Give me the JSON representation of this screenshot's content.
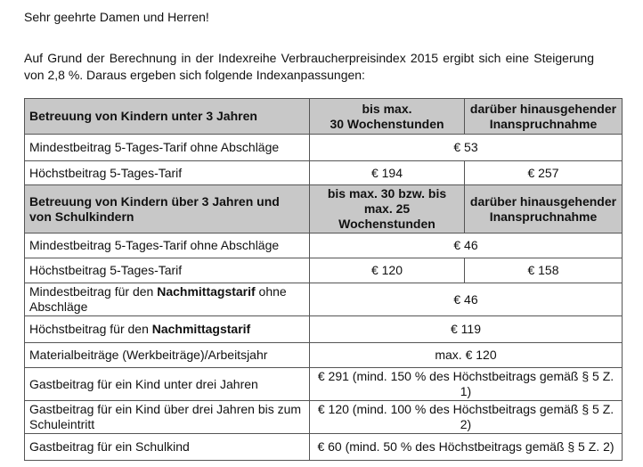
{
  "greeting": "Sehr geehrte Damen und Herren!",
  "intro": "Auf Grund der Berechnung in der Indexreihe Verbraucherpreisindex 2015 ergibt sich eine Steigerung von 2,8 %. Daraus ergeben sich folgende Indexanpassungen:",
  "table": {
    "header1": {
      "label": "Betreuung von Kindern unter 3 Jahren",
      "col1": "bis max. 30 Wochenstunden",
      "col1_l1": "bis max.",
      "col1_l2": "30 Wochenstunden",
      "col2_l1": "darüber hinausgehender",
      "col2_l2": "Inanspruchnahme"
    },
    "r1": {
      "label": "Mindestbeitrag 5-Tages-Tarif ohne Abschläge",
      "value": "€ 53"
    },
    "r2": {
      "label": "Höchstbeitrag 5-Tages-Tarif",
      "v1": "€ 194",
      "v2": "€ 257"
    },
    "header2": {
      "label": "Betreuung von Kindern über 3 Jahren und von Schulkindern",
      "col1": "bis max. 30 bzw. bis max. 25 Wochenstunden",
      "col2_l1": "darüber hinausgehender",
      "col2_l2": "Inanspruchnahme"
    },
    "r3": {
      "label": "Mindestbeitrag 5-Tages-Tarif ohne Abschläge",
      "value": "€ 46"
    },
    "r4": {
      "label": "Höchstbeitrag 5-Tages-Tarif",
      "v1": "€ 120",
      "v2": "€ 158"
    },
    "r5": {
      "pre": "Mindestbeitrag für den ",
      "bold": "Nachmittagstarif",
      "post": " ohne Abschläge",
      "value": "€ 46"
    },
    "r6": {
      "pre": "Höchstbeitrag für den ",
      "bold": "Nachmittagstarif",
      "value": "€ 119"
    },
    "r7": {
      "label": "Materialbeiträge (Werkbeiträge)/Arbeitsjahr",
      "value": "max. € 120"
    },
    "r8": {
      "label": "Gastbeitrag für ein Kind unter drei Jahren",
      "value": "€ 291 (mind. 150 % des Höchstbeitrags gemäß § 5 Z. 1)"
    },
    "r9": {
      "label": "Gastbeitrag für ein Kind über drei Jahren bis zum Schuleintritt",
      "value": "€ 120 (mind. 100 % des Höchstbeitrags gemäß § 5 Z. 2)"
    },
    "r10": {
      "label": "Gastbeitrag für ein Schulkind",
      "value": "€ 60 (mind. 50 % des Höchstbeitrags gemäß § 5 Z. 2)"
    }
  }
}
